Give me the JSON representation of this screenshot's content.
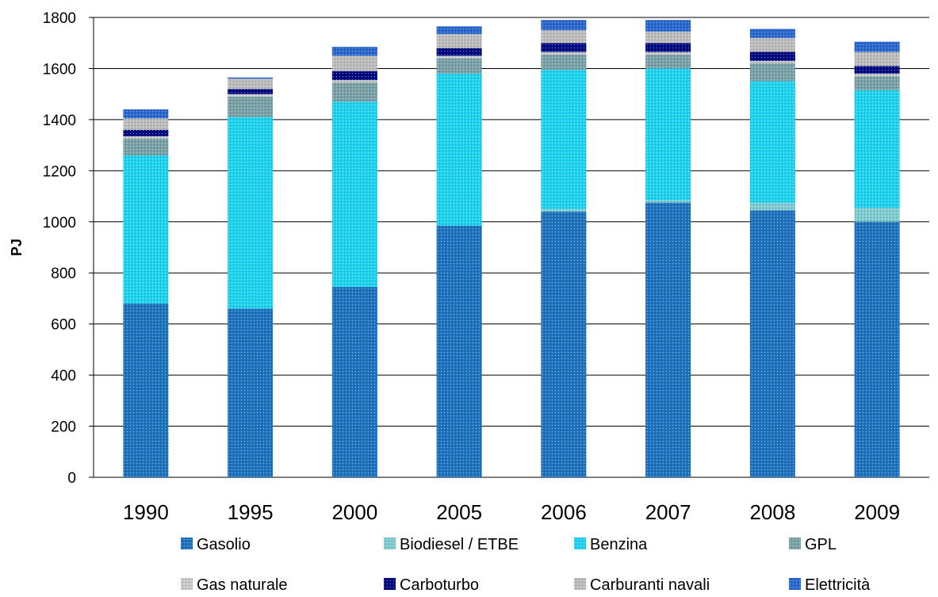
{
  "chart_data": {
    "type": "bar",
    "stacked": true,
    "title": "",
    "xlabel": "",
    "ylabel": "PJ",
    "ylim": [
      0,
      1800
    ],
    "yticks": [
      0,
      200,
      400,
      600,
      800,
      1000,
      1200,
      1400,
      1600,
      1800
    ],
    "grid": true,
    "legend_position": "bottom",
    "categories": [
      "1990",
      "1995",
      "2000",
      "2005",
      "2006",
      "2007",
      "2008",
      "2009"
    ],
    "series": [
      {
        "name": "Gasolio",
        "color": "#1f73be",
        "values": [
          680,
          660,
          745,
          985,
          1040,
          1075,
          1045,
          1000
        ]
      },
      {
        "name": "Biodiesel / ETBE",
        "color": "#7fcbd0",
        "values": [
          0,
          0,
          0,
          0,
          10,
          10,
          30,
          55
        ]
      },
      {
        "name": "Benzina",
        "color": "#1fd3f0",
        "values": [
          580,
          750,
          725,
          595,
          545,
          515,
          475,
          460
        ]
      },
      {
        "name": "GPL",
        "color": "#7aa0a8",
        "values": [
          65,
          80,
          75,
          60,
          60,
          55,
          70,
          55
        ]
      },
      {
        "name": "Gas naturale",
        "color": "#c8c8c8",
        "values": [
          10,
          10,
          10,
          10,
          10,
          10,
          10,
          10
        ]
      },
      {
        "name": "Carboturbo",
        "color": "#000a80",
        "values": [
          25,
          20,
          35,
          30,
          35,
          35,
          35,
          30
        ]
      },
      {
        "name": "Carburanti navali",
        "color": "#bcbcbc",
        "values": [
          45,
          40,
          60,
          55,
          50,
          45,
          55,
          55
        ]
      },
      {
        "name": "Elettricità",
        "color": "#2a68d0",
        "values": [
          35,
          5,
          35,
          30,
          40,
          45,
          35,
          40
        ]
      }
    ]
  }
}
